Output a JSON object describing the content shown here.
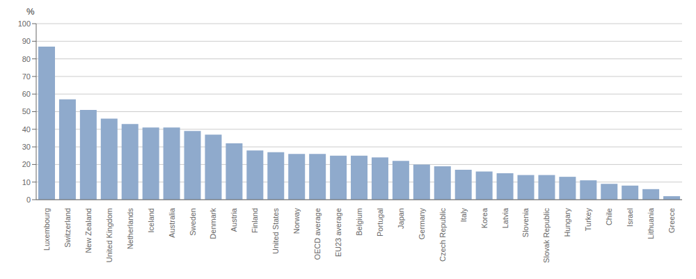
{
  "chart_data": {
    "type": "bar",
    "ylabel": "%",
    "categories": [
      "Luxembourg",
      "Switzerland",
      "New Zealand",
      "United Kingdom",
      "Netherlands",
      "Iceland",
      "Australia",
      "Sweden",
      "Denmark",
      "Austria",
      "Finland",
      "United States",
      "Norway",
      "OECD average",
      "EU23 average",
      "Belgium",
      "Portugal",
      "Japan",
      "Germany",
      "Czech Republic",
      "Italy",
      "Korea",
      "Latvia",
      "Slovenia",
      "Slovak Republic",
      "Hungary",
      "Turkey",
      "Chile",
      "Israel",
      "Lithuania",
      "Greece"
    ],
    "values": [
      87,
      57,
      51,
      46,
      43,
      41,
      41,
      39,
      37,
      32,
      28,
      27,
      26,
      26,
      25,
      25,
      24,
      22,
      20,
      19,
      17,
      16,
      15,
      14,
      14,
      13,
      11,
      9,
      8,
      6,
      2
    ],
    "color": "#8faacc",
    "ylim": [
      0,
      100
    ],
    "yticks": [
      0,
      10,
      20,
      30,
      40,
      50,
      60,
      70,
      80,
      90,
      100
    ],
    "grid": true
  }
}
